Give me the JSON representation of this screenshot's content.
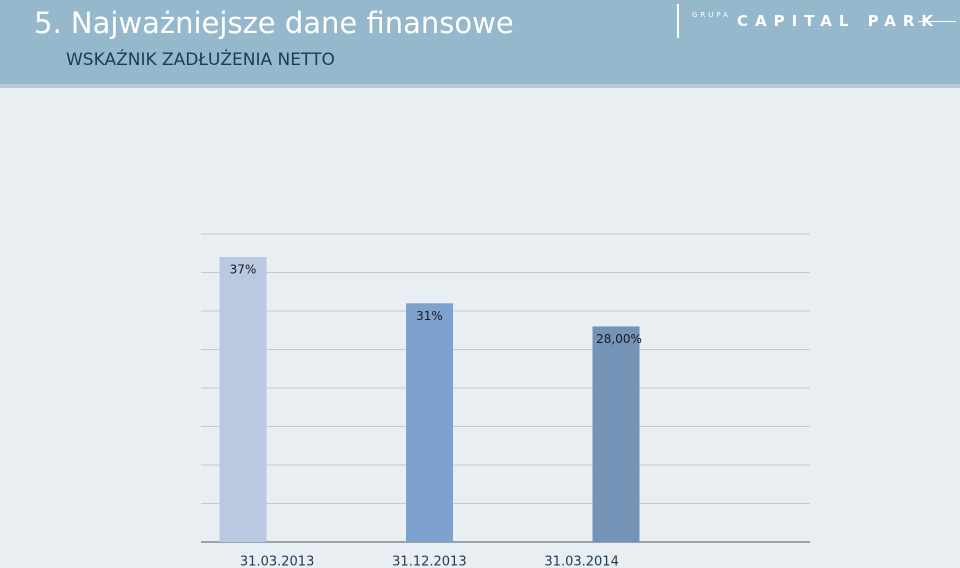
{
  "header": {
    "title": "5. Najważniejsze dane finansowe",
    "subtitle": "WSKAŹNIK ZADŁUŻENIA NETTO"
  },
  "logo": {
    "group": "GRUPA",
    "name": "CAPITAL PARK"
  },
  "chart_data": {
    "type": "bar",
    "categories": [
      "31.03.2013",
      "31.12.2013",
      "31.03.2014",
      null
    ],
    "values": [
      37,
      31,
      28,
      null
    ],
    "value_labels": [
      "37%",
      "31%",
      "28,00%",
      null
    ],
    "colors": [
      "#b9c9e2",
      "#7ea2cf",
      "#7593b7"
    ],
    "ylim": [
      0,
      40
    ],
    "yticks": [
      0,
      5,
      10,
      15,
      20,
      25,
      30,
      35,
      40
    ],
    "grid": true
  }
}
